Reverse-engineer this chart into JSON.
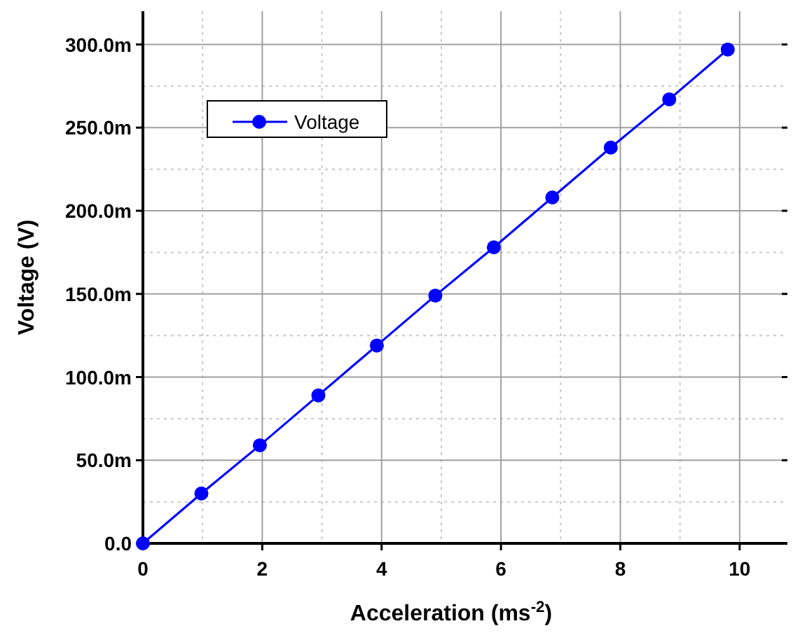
{
  "chart_data": {
    "type": "line",
    "xlabel": "Acceleration (ms$^{-2}$)",
    "ylabel": "Voltage (V)",
    "x": [
      0,
      0.98,
      1.96,
      2.94,
      3.92,
      4.9,
      5.88,
      6.86,
      7.84,
      8.82,
      9.8
    ],
    "series": [
      {
        "name": "Voltage",
        "color": "#0000ff",
        "values": [
          0,
          30,
          59,
          89,
          119,
          149,
          178,
          208,
          238,
          267,
          297
        ]
      }
    ],
    "xlim": [
      0,
      10.8
    ],
    "xticks": [
      0,
      2,
      4,
      6,
      8,
      10
    ],
    "ylim": [
      0,
      320
    ],
    "yticks": [
      {
        "value": 0,
        "label": "0.0"
      },
      {
        "value": 50,
        "label": "50.0m"
      },
      {
        "value": 100,
        "label": "100.0m"
      },
      {
        "value": 150,
        "label": "150.0m"
      },
      {
        "value": 200,
        "label": "200.0m"
      },
      {
        "value": 250,
        "label": "250.0m"
      },
      {
        "value": 300,
        "label": "300.0m"
      }
    ],
    "grid": true,
    "legend": "top left",
    "marker": "circle",
    "line_style": "solid"
  }
}
